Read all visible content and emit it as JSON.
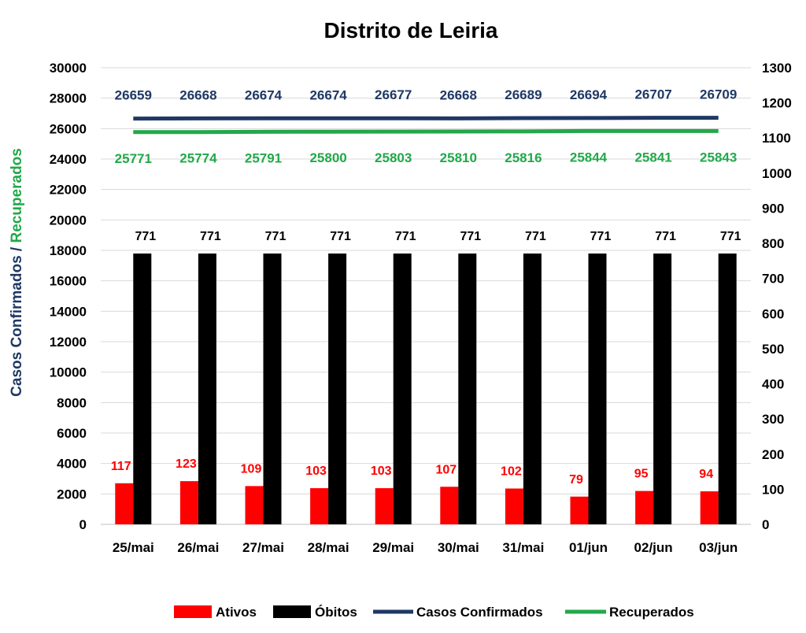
{
  "chart_data": {
    "type": "bar",
    "title": "Distrito de Leiria",
    "categories": [
      "25/mai",
      "26/mai",
      "27/mai",
      "28/mai",
      "29/mai",
      "30/mai",
      "31/mai",
      "01/jun",
      "02/jun",
      "03/jun"
    ],
    "ylabel_left_part1": "Casos Confirmados",
    "ylabel_left_sep": " / ",
    "ylabel_left_part2": "Recuperados",
    "ylim_left": [
      0,
      30000
    ],
    "yticks_left": [
      0,
      2000,
      4000,
      6000,
      8000,
      10000,
      12000,
      14000,
      16000,
      18000,
      20000,
      22000,
      24000,
      26000,
      28000,
      30000
    ],
    "ylim_right": [
      0,
      1300
    ],
    "yticks_right": [
      0,
      100,
      200,
      300,
      400,
      500,
      600,
      700,
      800,
      900,
      1000,
      1100,
      1200,
      1300
    ],
    "grid": true,
    "legend_position": "bottom",
    "series": [
      {
        "name": "Ativos",
        "kind": "bar",
        "axis": "right",
        "color": "#ff0000",
        "values": [
          117,
          123,
          109,
          103,
          103,
          107,
          102,
          79,
          95,
          94
        ]
      },
      {
        "name": "Óbitos",
        "kind": "bar",
        "axis": "right",
        "color": "#000000",
        "values": [
          771,
          771,
          771,
          771,
          771,
          771,
          771,
          771,
          771,
          771
        ]
      },
      {
        "name": "Casos Confirmados",
        "kind": "line",
        "axis": "left",
        "color": "#1f3864",
        "values": [
          26659,
          26668,
          26674,
          26674,
          26677,
          26668,
          26689,
          26694,
          26707,
          26709
        ]
      },
      {
        "name": "Recuperados",
        "kind": "line",
        "axis": "left",
        "color": "#22a84a",
        "values": [
          25771,
          25774,
          25791,
          25800,
          25803,
          25810,
          25816,
          25844,
          25841,
          25843
        ]
      }
    ]
  }
}
